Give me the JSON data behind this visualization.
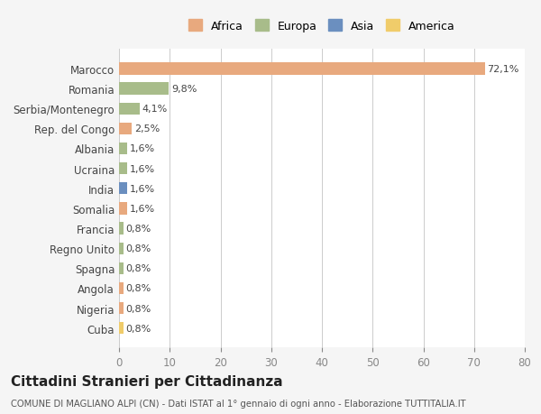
{
  "countries": [
    "Marocco",
    "Romania",
    "Serbia/Montenegro",
    "Rep. del Congo",
    "Albania",
    "Ucraina",
    "India",
    "Somalia",
    "Francia",
    "Regno Unito",
    "Spagna",
    "Angola",
    "Nigeria",
    "Cuba"
  ],
  "values": [
    72.1,
    9.8,
    4.1,
    2.5,
    1.6,
    1.6,
    1.6,
    1.6,
    0.8,
    0.8,
    0.8,
    0.8,
    0.8,
    0.8
  ],
  "labels": [
    "72,1%",
    "9,8%",
    "4,1%",
    "2,5%",
    "1,6%",
    "1,6%",
    "1,6%",
    "1,6%",
    "0,8%",
    "0,8%",
    "0,8%",
    "0,8%",
    "0,8%",
    "0,8%"
  ],
  "colors": [
    "#E8A97E",
    "#A8BC8A",
    "#A8BC8A",
    "#E8A97E",
    "#A8BC8A",
    "#A8BC8A",
    "#6B8FBF",
    "#E8A97E",
    "#A8BC8A",
    "#A8BC8A",
    "#A8BC8A",
    "#E8A97E",
    "#E8A97E",
    "#F0CC6A"
  ],
  "legend_labels": [
    "Africa",
    "Europa",
    "Asia",
    "America"
  ],
  "legend_colors": [
    "#E8A97E",
    "#A8BC8A",
    "#6B8FBF",
    "#F0CC6A"
  ],
  "title": "Cittadini Stranieri per Cittadinanza",
  "subtitle": "COMUNE DI MAGLIANO ALPI (CN) - Dati ISTAT al 1° gennaio di ogni anno - Elaborazione TUTTITALIA.IT",
  "xlim": [
    0,
    80
  ],
  "xticks": [
    0,
    10,
    20,
    30,
    40,
    50,
    60,
    70,
    80
  ],
  "background_color": "#f5f5f5",
  "plot_bg_color": "#ffffff"
}
